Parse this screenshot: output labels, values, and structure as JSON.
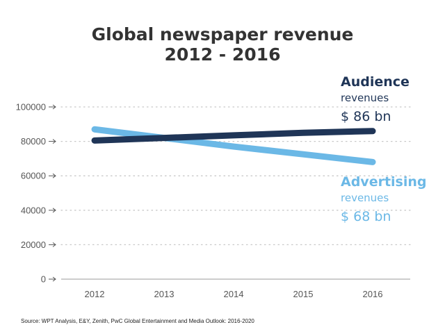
{
  "chart_data": {
    "type": "line",
    "title_lines": [
      "Global newspaper revenue",
      "2012 - 2016"
    ],
    "categories": [
      "2012",
      "2013",
      "2014",
      "2015",
      "2016"
    ],
    "y_ticks": [
      "0",
      "20000",
      "40000",
      "60000",
      "80000",
      "100000"
    ],
    "ylim": [
      0,
      100000
    ],
    "grid": true,
    "series": [
      {
        "key": "audience",
        "name": "Audience",
        "values": [
          80500,
          82000,
          83500,
          85000,
          86000
        ],
        "color": "#1f3557",
        "annotation": {
          "heading": "Audience",
          "sub": "revenues",
          "value": "$ 86 bn"
        }
      },
      {
        "key": "advertising",
        "name": "Advertising",
        "values": [
          87000,
          82000,
          77000,
          72500,
          68000
        ],
        "color": "#6bb8e6",
        "annotation": {
          "heading": "Advertising",
          "sub": "revenues",
          "value": "$ 68 bn"
        }
      }
    ],
    "source": "Source: WPT Analysis, E&Y, Zenith, PwC Global Entertainment and Media Outlook: 2016-2020"
  }
}
